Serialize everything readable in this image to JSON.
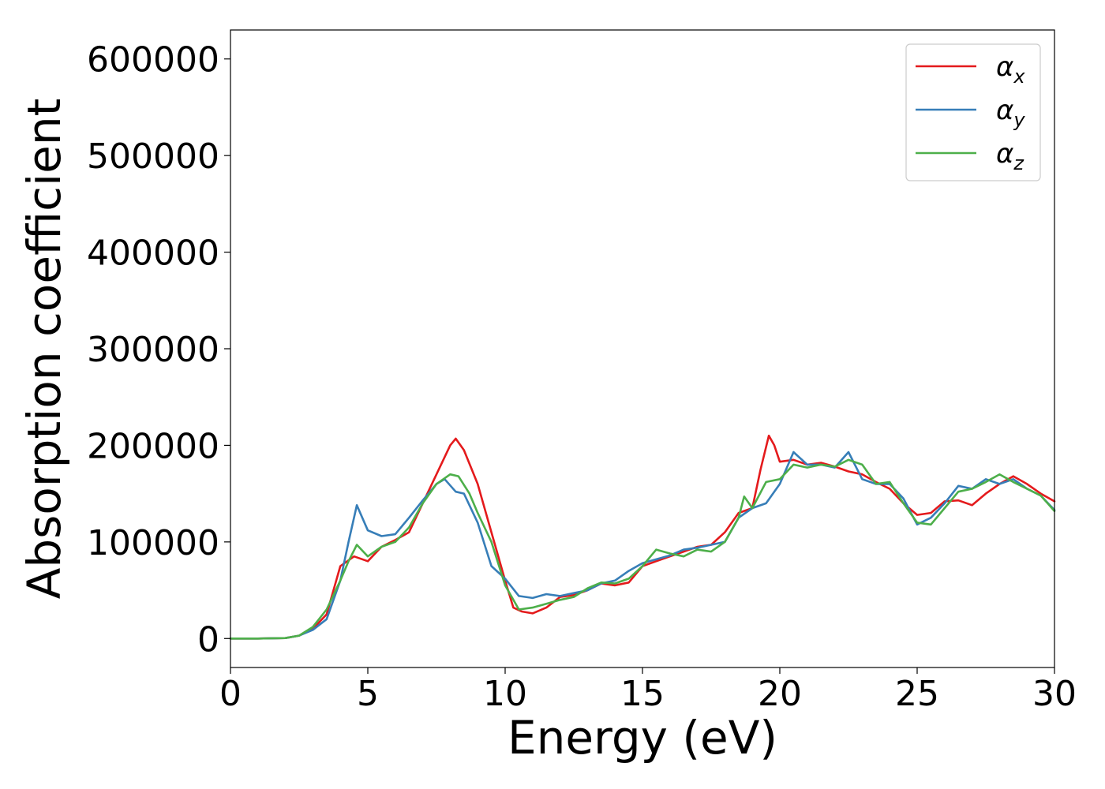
{
  "chart_data": {
    "type": "line",
    "xlabel": "Energy (eV)",
    "ylabel": "Absorption coefficient",
    "xlim": [
      0,
      30
    ],
    "ylim": [
      -30000,
      630000
    ],
    "xticks": [
      0,
      5,
      10,
      15,
      20,
      25,
      30
    ],
    "yticks": [
      0,
      100000,
      200000,
      300000,
      400000,
      500000,
      600000
    ],
    "xtick_labels": [
      "0",
      "5",
      "10",
      "15",
      "20",
      "25",
      "30"
    ],
    "ytick_labels": [
      "0",
      "100000",
      "200000",
      "300000",
      "400000",
      "500000",
      "600000"
    ],
    "grid": false,
    "legend_position": "top-right",
    "series": [
      {
        "name": "α",
        "subscript": "x",
        "color": "#e41a1c",
        "x": [
          0,
          1,
          2,
          2.5,
          3,
          3.5,
          4,
          4.5,
          5,
          5.5,
          6,
          6.5,
          7,
          7.5,
          8,
          8.2,
          8.5,
          9,
          9.5,
          10,
          10.3,
          10.6,
          11,
          11.5,
          12,
          12.5,
          13,
          13.5,
          14,
          14.5,
          15,
          15.5,
          16,
          16.5,
          17,
          17.5,
          18,
          18.5,
          19,
          19.3,
          19.6,
          19.8,
          20,
          20.5,
          21,
          21.5,
          22,
          22.5,
          23,
          23.5,
          24,
          24.5,
          25,
          25.5,
          26,
          26.5,
          27,
          27.5,
          28,
          28.5,
          29,
          29.5,
          30
        ],
        "y": [
          0,
          0,
          500,
          3000,
          10000,
          25000,
          75000,
          85000,
          80000,
          95000,
          102000,
          110000,
          140000,
          170000,
          200000,
          207000,
          195000,
          160000,
          110000,
          60000,
          32000,
          28000,
          26000,
          32000,
          43000,
          45000,
          50000,
          57000,
          55000,
          58000,
          75000,
          80000,
          85000,
          90000,
          95000,
          97000,
          110000,
          130000,
          135000,
          175000,
          210000,
          200000,
          183000,
          185000,
          180000,
          182000,
          178000,
          173000,
          170000,
          162000,
          155000,
          140000,
          128000,
          130000,
          142000,
          143000,
          138000,
          150000,
          160000,
          168000,
          160000,
          150000,
          142000
        ]
      },
      {
        "name": "α",
        "subscript": "y",
        "color": "#377eb8",
        "x": [
          0,
          1,
          2,
          2.5,
          3,
          3.5,
          4,
          4.3,
          4.6,
          5,
          5.5,
          6,
          6.5,
          7,
          7.5,
          7.8,
          8.2,
          8.5,
          9,
          9.5,
          10,
          10.5,
          11,
          11.5,
          12,
          12.5,
          13,
          13.5,
          14,
          14.5,
          15,
          15.5,
          16,
          16.5,
          17,
          17.5,
          18,
          18.5,
          19,
          19.5,
          20,
          20.5,
          21,
          21.5,
          22,
          22.5,
          23,
          23.5,
          24,
          24.5,
          25,
          25.5,
          26,
          26.5,
          27,
          27.5,
          28,
          28.5,
          29,
          29.5,
          30
        ],
        "y": [
          0,
          0,
          500,
          3000,
          9000,
          20000,
          60000,
          100000,
          138000,
          112000,
          106000,
          108000,
          125000,
          143000,
          160000,
          165000,
          152000,
          150000,
          120000,
          75000,
          62000,
          44000,
          42000,
          46000,
          44000,
          47000,
          50000,
          57000,
          60000,
          70000,
          78000,
          82000,
          86000,
          92000,
          94000,
          97000,
          100000,
          125000,
          135000,
          140000,
          160000,
          193000,
          180000,
          180000,
          177000,
          193000,
          165000,
          160000,
          160000,
          145000,
          118000,
          125000,
          140000,
          158000,
          155000,
          165000,
          160000,
          165000,
          155000,
          148000,
          133000
        ]
      },
      {
        "name": "α",
        "subscript": "z",
        "color": "#4daf4a",
        "x": [
          0,
          1,
          2,
          2.5,
          3,
          3.5,
          4,
          4.3,
          4.6,
          5,
          5.5,
          6,
          6.5,
          7,
          7.5,
          8,
          8.3,
          8.7,
          9,
          9.5,
          10,
          10.5,
          11,
          11.5,
          12,
          12.5,
          13,
          13.5,
          14,
          14.5,
          15,
          15.5,
          16,
          16.5,
          17,
          17.5,
          18,
          18.5,
          18.7,
          19,
          19.5,
          20,
          20.5,
          21,
          21.5,
          22,
          22.5,
          23,
          23.5,
          24,
          24.5,
          25,
          25.5,
          26,
          26.5,
          27,
          27.5,
          28,
          28.5,
          29,
          29.5,
          30
        ],
        "y": [
          0,
          0,
          500,
          3000,
          12000,
          30000,
          60000,
          80000,
          97000,
          85000,
          95000,
          100000,
          115000,
          140000,
          160000,
          170000,
          168000,
          150000,
          130000,
          100000,
          55000,
          30000,
          32000,
          36000,
          40000,
          43000,
          52000,
          58000,
          57000,
          62000,
          75000,
          92000,
          88000,
          85000,
          92000,
          90000,
          100000,
          125000,
          147000,
          135000,
          162000,
          165000,
          180000,
          177000,
          180000,
          178000,
          185000,
          180000,
          160000,
          162000,
          140000,
          120000,
          118000,
          135000,
          152000,
          155000,
          162000,
          170000,
          162000,
          155000,
          148000,
          132000
        ]
      }
    ]
  }
}
